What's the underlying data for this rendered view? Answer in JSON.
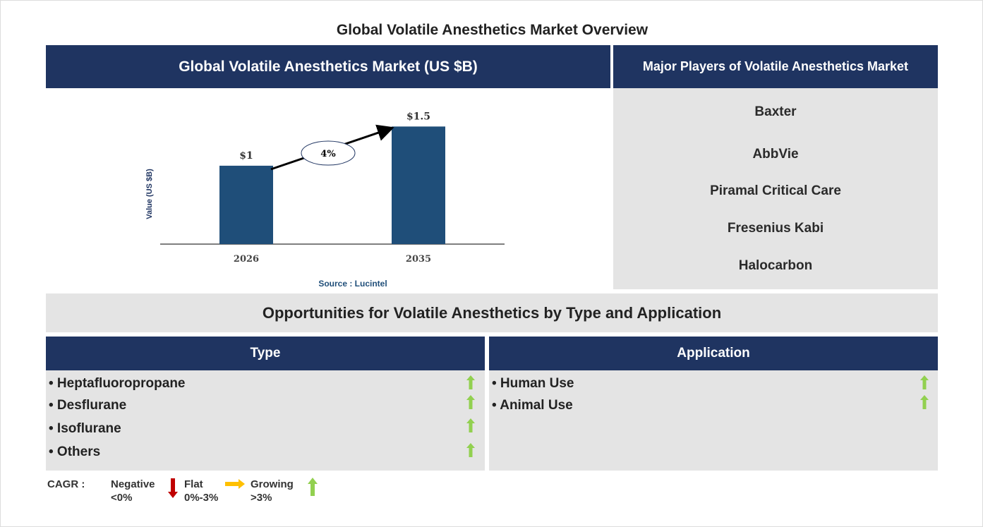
{
  "page_title": "Global Volatile Anesthetics Market Overview",
  "chart_panel": {
    "header": "Global Volatile Anesthetics Market (US $B)",
    "source": "Source : Lucintel"
  },
  "chart_data": {
    "type": "bar",
    "categories": [
      "2026",
      "2035"
    ],
    "values": [
      1,
      1.5
    ],
    "data_labels": [
      "$1",
      "$1.5"
    ],
    "ylabel": "Value (US $B)",
    "cagr_annotation": "4%",
    "bar_color": "#1f4e79",
    "grid": false,
    "ylim": [
      0,
      1.8
    ]
  },
  "players": {
    "header": "Major Players of Volatile Anesthetics Market",
    "items": [
      "Baxter",
      "AbbVie",
      "Piramal Critical Care",
      "Fresenius Kabi",
      "Halocarbon"
    ]
  },
  "opportunities": {
    "header": "Opportunities for Volatile Anesthetics by Type and Application",
    "type": {
      "header": "Type",
      "items": [
        "• Heptafluoropropane",
        "• Desflurane",
        "• Isoflurane",
        "• Others"
      ]
    },
    "application": {
      "header": "Application",
      "items": [
        "• Human Use",
        "• Animal Use"
      ]
    }
  },
  "legend": {
    "label": "CAGR :",
    "negative": "Negative",
    "negative_range": "<0%",
    "flat": "Flat",
    "flat_range": "0%-3%",
    "growing": "Growing",
    "growing_range": ">3%",
    "colors": {
      "negative": "#c00000",
      "flat": "#ffc000",
      "growing": "#92d050"
    }
  }
}
